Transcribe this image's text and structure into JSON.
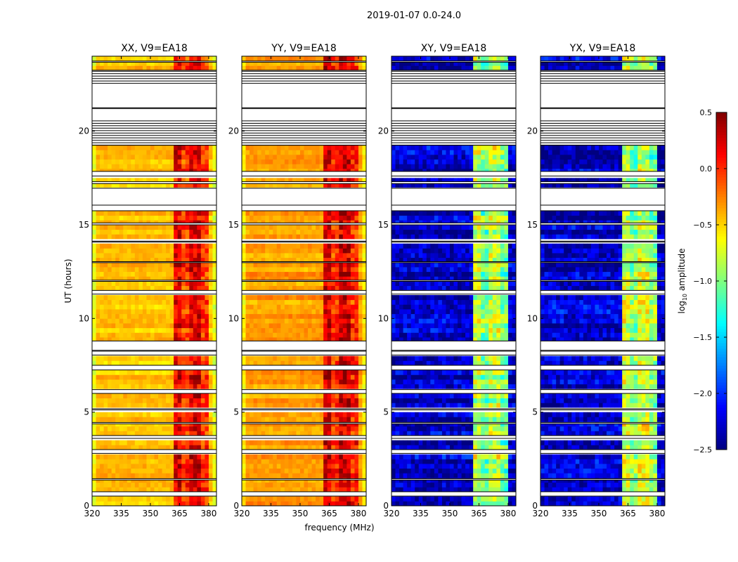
{
  "chart_data": {
    "type": "heatmap",
    "title": "2019-01-07 0.0-24.0",
    "xlabel": "frequency (MHz)",
    "ylabel": "UT (hours)",
    "xlim": [
      320,
      384
    ],
    "ylim": [
      0,
      24
    ],
    "xticks": [
      320,
      335,
      350,
      365,
      380
    ],
    "yticks": [
      0,
      5,
      10,
      15,
      20
    ],
    "colorbar": {
      "label_main": "log",
      "label_sub": "10",
      "label_rest": " amplitude",
      "colormap": "jet",
      "range": [
        -2.5,
        0.5
      ],
      "ticks": [
        "0.5",
        "0.0",
        "−0.5",
        "−1.0",
        "−1.5",
        "−2.0",
        "−2.5"
      ],
      "tick_values": [
        0.5,
        0.0,
        -0.5,
        -1.0,
        -1.5,
        -2.0,
        -2.5
      ]
    },
    "bright_band_mhz": [
      362,
      380
    ],
    "flagged_intervals_hours": [
      [
        0.52,
        0.75
      ],
      [
        1.38,
        1.45
      ],
      [
        2.8,
        3.0
      ],
      [
        3.6,
        3.75
      ],
      [
        4.38,
        4.45
      ],
      [
        5.12,
        5.18
      ],
      [
        6.0,
        6.2
      ],
      [
        7.25,
        7.5
      ],
      [
        8.05,
        8.25
      ],
      [
        8.3,
        8.8
      ],
      [
        11.3,
        11.5
      ],
      [
        11.98,
        12.04
      ],
      [
        12.98,
        13.03
      ],
      [
        14.08,
        14.13
      ],
      [
        15.0,
        15.1
      ],
      [
        15.75,
        16.05
      ],
      [
        16.05,
        16.95
      ],
      [
        17.2,
        17.3
      ],
      [
        17.6,
        17.85
      ],
      [
        19.25,
        21.2
      ],
      [
        21.25,
        23.25
      ],
      [
        23.68,
        23.74
      ]
    ],
    "series": [
      {
        "name": "XX, V9=EA18",
        "base_log_amp": -0.45,
        "band_log_amp": 0.1
      },
      {
        "name": "YY, V9=EA18",
        "base_log_amp": -0.35,
        "band_log_amp": 0.15
      },
      {
        "name": "XY, V9=EA18",
        "base_log_amp": -2.3,
        "band_log_amp": -0.9
      },
      {
        "name": "YX, V9=EA18",
        "base_log_amp": -2.3,
        "band_log_amp": -0.85
      }
    ]
  }
}
